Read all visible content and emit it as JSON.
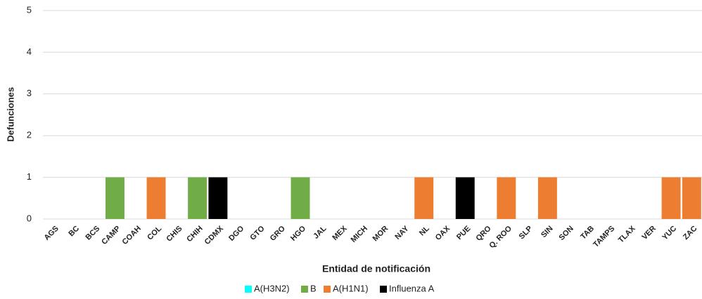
{
  "chart_data": {
    "type": "stacked_bar",
    "x_label": "Entidad de notificación",
    "y_label": "Defunciones",
    "categories": [
      "AGS",
      "BC",
      "BCS",
      "CAMP",
      "COAH",
      "COL",
      "CHIS",
      "CHIH",
      "CDMX",
      "DGO",
      "GTO",
      "GRO",
      "HGO",
      "JAL",
      "MEX",
      "MICH",
      "MOR",
      "NAY",
      "NL",
      "OAX",
      "PUE",
      "QRO",
      "Q. ROO",
      "SLP",
      "SIN",
      "SON",
      "TAB",
      "TAMPS",
      "TLAX",
      "VER",
      "YUC",
      "ZAC"
    ],
    "series": [
      {
        "name": "A(H3N2)",
        "color": "#00ffff",
        "values": [
          0,
          0,
          0,
          0,
          0,
          0,
          0,
          0,
          0,
          0,
          0,
          0,
          0,
          0,
          0,
          0,
          0,
          0,
          0,
          0,
          0,
          0,
          0,
          0,
          0,
          0,
          0,
          0,
          0,
          0,
          0,
          0
        ]
      },
      {
        "name": "B",
        "color": "#70ad47",
        "values": [
          0,
          0,
          0,
          1,
          0,
          0,
          0,
          1,
          0,
          0,
          0,
          0,
          1,
          0,
          0,
          0,
          0,
          0,
          0,
          0,
          0,
          0,
          0,
          0,
          0,
          0,
          0,
          0,
          0,
          0,
          0,
          0
        ]
      },
      {
        "name": "A(H1N1)",
        "color": "#ed7d31",
        "values": [
          0,
          0,
          0,
          0,
          0,
          1,
          0,
          0,
          0,
          0,
          0,
          0,
          0,
          0,
          0,
          0,
          0,
          0,
          1,
          0,
          0,
          0,
          1,
          0,
          1,
          0,
          0,
          0,
          0,
          0,
          1,
          1
        ]
      },
      {
        "name": "Influenza A",
        "color": "#000000",
        "values": [
          0,
          0,
          0,
          0,
          0,
          0,
          0,
          0,
          1,
          0,
          0,
          0,
          0,
          0,
          0,
          0,
          0,
          0,
          0,
          0,
          1,
          0,
          0,
          0,
          0,
          0,
          0,
          0,
          0,
          0,
          0,
          0
        ]
      }
    ],
    "ylim": [
      0,
      5
    ],
    "yticks": [
      0,
      1,
      2,
      3,
      4,
      5
    ],
    "grid": true,
    "legend": "bottom"
  }
}
